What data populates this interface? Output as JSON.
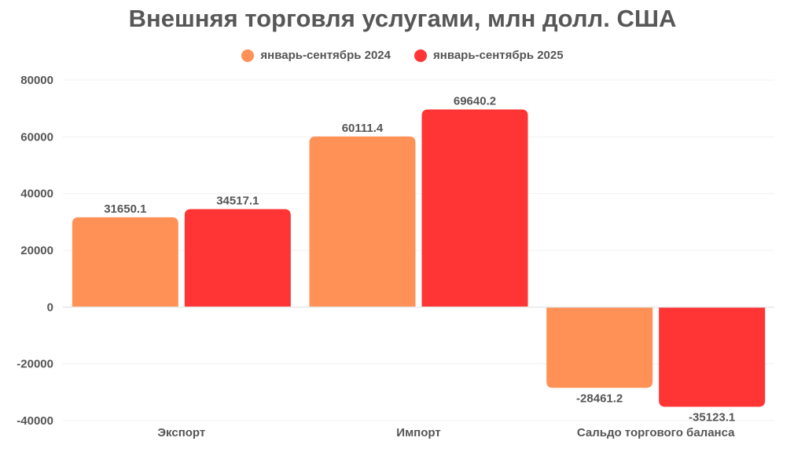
{
  "chart_data": {
    "type": "bar",
    "title": "Внешняя торговля услугами, млн долл. США",
    "categories": [
      "Экспорт",
      "Импорт",
      "Сальдо торгового баланса"
    ],
    "series": [
      {
        "name": "январь-сентябрь 2024",
        "color": "#FF9157",
        "values": [
          31650.1,
          60111.4,
          -28461.2
        ]
      },
      {
        "name": "январь-сентябрь 2025",
        "color": "#FF3434",
        "values": [
          34517.1,
          69640.2,
          -35123.1
        ]
      }
    ],
    "data_labels": [
      [
        "31650.1",
        "60111.4",
        "-28461.2"
      ],
      [
        "34517.1",
        "69640.2",
        "-35123.1"
      ]
    ],
    "ylim": [
      -40000,
      80000
    ],
    "yticks": [
      "80000",
      "60000",
      "40000",
      "20000",
      "0",
      "-20000",
      "-40000"
    ],
    "grid": true,
    "legend_position": "top-center",
    "xlabel": "",
    "ylabel": ""
  }
}
